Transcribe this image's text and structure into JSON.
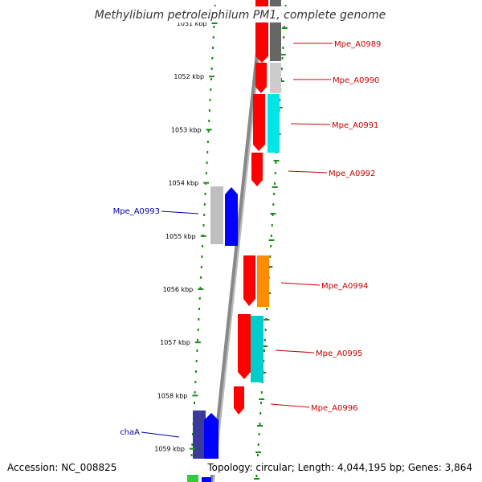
{
  "title": "Methylibium petroleiphilum PM1, complete genome",
  "footer": {
    "accession": "Accession: NC_008825",
    "topology": "Topology: circular; Length: 4,044,195 bp; Genes: 3,864"
  },
  "scale_labels": [
    "1051 kbp",
    "1052 kbp",
    "1053 kbp",
    "1054 kbp",
    "1055 kbp",
    "1056 kbp",
    "1057 kbp",
    "1058 kbp",
    "1059 kbp"
  ],
  "gene_labels": [
    {
      "name": "Mpe_A0989",
      "color": "#cc0000"
    },
    {
      "name": "Mpe_A0990",
      "color": "#cc0000"
    },
    {
      "name": "Mpe_A0991",
      "color": "#cc0000"
    },
    {
      "name": "Mpe_A0992",
      "color": "#cc0000"
    },
    {
      "name": "Mpe_A0993",
      "color": "#0000aa"
    },
    {
      "name": "Mpe_A0994",
      "color": "#cc0000"
    },
    {
      "name": "Mpe_A0995",
      "color": "#cc0000"
    },
    {
      "name": "Mpe_A0996",
      "color": "#cc0000"
    },
    {
      "name": "chaA",
      "color": "#0000aa"
    }
  ],
  "colors": {
    "backbone": "#888888",
    "dots": "#1a8a1a",
    "red": "#ff0000",
    "blue": "#0000ff",
    "gray": "#bfbfbf",
    "dark_gray": "#666666",
    "light_gray": "#cccccc",
    "cyan": "#00e5e5",
    "orange": "#ff8c00",
    "navy": "#3a3a9a",
    "green": "#33cc33"
  }
}
